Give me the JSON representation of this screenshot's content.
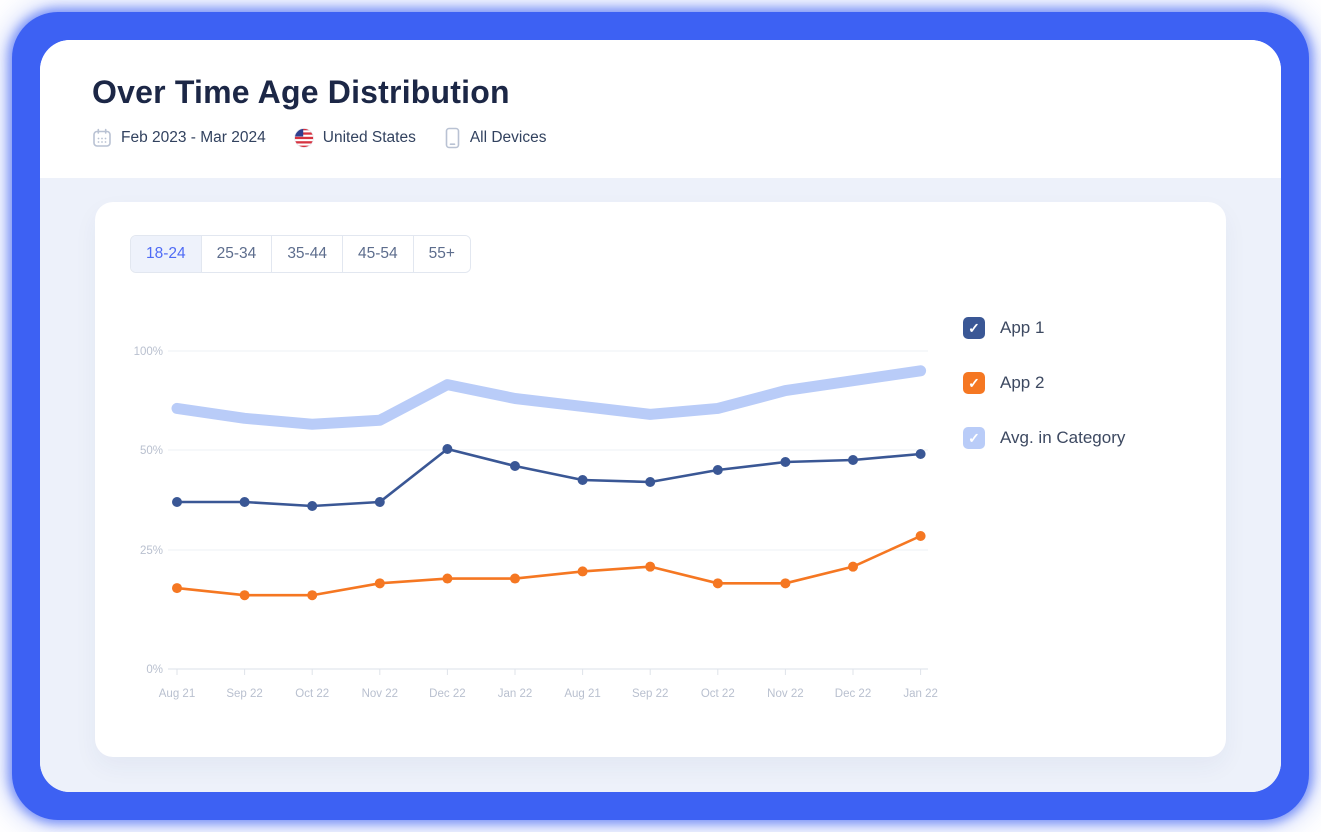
{
  "header": {
    "title": "Over Time Age Distribution",
    "filters": [
      {
        "icon": "calendar-icon",
        "label": "Feb 2023 - Mar 2024"
      },
      {
        "icon": "us-flag-icon",
        "label": "United States"
      },
      {
        "icon": "mobile-device-icon",
        "label": "All Devices"
      }
    ]
  },
  "tabs": {
    "items": [
      {
        "label": "18-24",
        "active": true
      },
      {
        "label": "25-34",
        "active": false
      },
      {
        "label": "35-44",
        "active": false
      },
      {
        "label": "45-54",
        "active": false
      },
      {
        "label": "55+",
        "active": false
      }
    ]
  },
  "chart_data": {
    "type": "line",
    "categories": [
      "Aug 21",
      "Sep 22",
      "Oct 22",
      "Nov 22",
      "Dec 22",
      "Jan 22",
      "Aug 21",
      "Sep 22",
      "Oct 22",
      "Nov 22",
      "Dec 22",
      "Jan 22"
    ],
    "y_ticks": [
      {
        "label": "100%",
        "value": 100
      },
      {
        "label": "50%",
        "value": 50
      },
      {
        "label": "25%",
        "value": 25
      },
      {
        "label": "0%",
        "value": 0
      }
    ],
    "series": [
      {
        "name": "App 1",
        "color": "#3a5795",
        "style": "line-markers",
        "values": [
          37,
          37,
          36,
          37,
          50.5,
          46,
          42.5,
          42,
          45,
          47,
          47.5,
          49
        ]
      },
      {
        "name": "App 2",
        "color": "#f57722",
        "style": "line-markers",
        "values": [
          17,
          15.5,
          15.5,
          18,
          19,
          19,
          20.5,
          21.5,
          18,
          18,
          21.5,
          28.5
        ]
      },
      {
        "name": "Avg. in Category",
        "color": "#b9ccf8",
        "style": "band",
        "values": [
          71,
          66,
          63,
          65,
          83,
          76,
          72,
          68,
          71,
          80,
          85,
          90
        ]
      }
    ],
    "title": "Over Time Age Distribution",
    "xlabel": "",
    "ylabel": "",
    "grid": true,
    "legend_position": "right"
  },
  "legend": {
    "items": [
      {
        "label": "App 1",
        "checked": true
      },
      {
        "label": "App 2",
        "checked": true
      },
      {
        "label": "Avg. in Category",
        "checked": true
      }
    ],
    "check_glyph": "✓"
  }
}
